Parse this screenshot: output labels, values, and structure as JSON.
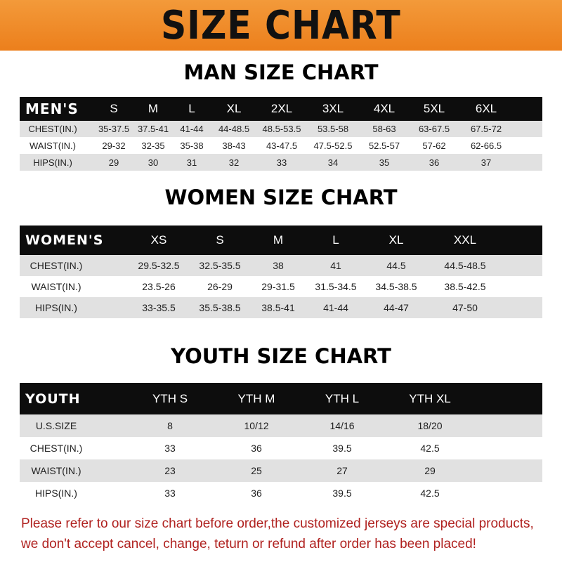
{
  "banner_title": "SIZE CHART",
  "sections": [
    {
      "title": "MAN SIZE CHART",
      "header": [
        "MEN'S",
        "S",
        "M",
        "L",
        "XL",
        "2XL",
        "3XL",
        "4XL",
        "5XL",
        "6XL"
      ],
      "rows": [
        [
          "CHEST(IN.)",
          "35-37.5",
          "37.5-41",
          "41-44",
          "44-48.5",
          "48.5-53.5",
          "53.5-58",
          "58-63",
          "63-67.5",
          "67.5-72"
        ],
        [
          "WAIST(IN.)",
          "29-32",
          "32-35",
          "35-38",
          "38-43",
          "43-47.5",
          "47.5-52.5",
          "52.5-57",
          "57-62",
          "62-66.5"
        ],
        [
          "HIPS(IN.)",
          "29",
          "30",
          "31",
          "32",
          "33",
          "34",
          "35",
          "36",
          "37"
        ]
      ]
    },
    {
      "title": "WOMEN SIZE CHART",
      "header": [
        "WOMEN'S",
        "XS",
        "S",
        "M",
        "L",
        "XL",
        "XXL"
      ],
      "rows": [
        [
          "CHEST(IN.)",
          "29.5-32.5",
          "32.5-35.5",
          "38",
          "41",
          "44.5",
          "44.5-48.5"
        ],
        [
          "WAIST(IN.)",
          "23.5-26",
          "26-29",
          "29-31.5",
          "31.5-34.5",
          "34.5-38.5",
          "38.5-42.5"
        ],
        [
          "HIPS(IN.)",
          "33-35.5",
          "35.5-38.5",
          "38.5-41",
          "41-44",
          "44-47",
          "47-50"
        ]
      ]
    },
    {
      "title": "YOUTH SIZE CHART",
      "header": [
        "YOUTH",
        "YTH S",
        "YTH M",
        "YTH L",
        "YTH XL"
      ],
      "rows": [
        [
          "U.S.SIZE",
          "8",
          "10/12",
          "14/16",
          "18/20"
        ],
        [
          "CHEST(IN.)",
          "33",
          "36",
          "39.5",
          "42.5"
        ],
        [
          "WAIST(IN.)",
          "23",
          "25",
          "27",
          "29"
        ],
        [
          "HIPS(IN.)",
          "33",
          "36",
          "39.5",
          "42.5"
        ]
      ]
    }
  ],
  "footer": {
    "line1": "Please refer to our size chart before order,the customized jerseys are special products,",
    "line2": "we don't accept cancel, change, teturn or refund after order has been placed!"
  },
  "colors": {
    "banner": "#ec7f1c",
    "header_row": "#0d0d0d",
    "stripe": "#e1e1e1",
    "footer_text": "#b0211f"
  }
}
